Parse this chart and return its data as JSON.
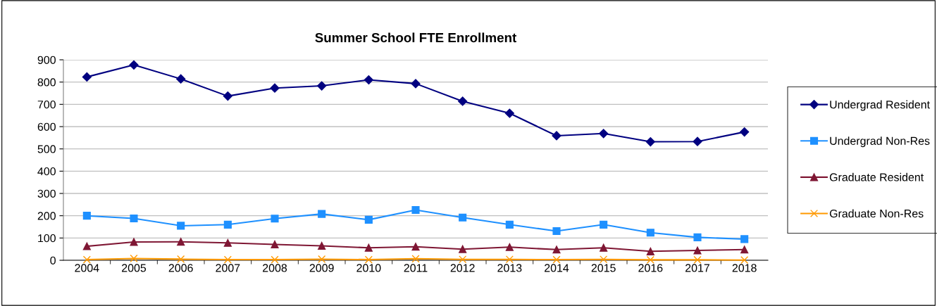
{
  "chart_data": {
    "type": "line",
    "title": "Summer School FTE Enrollment",
    "categories": [
      "2004",
      "2005",
      "2006",
      "2007",
      "2008",
      "2009",
      "2010",
      "2011",
      "2012",
      "2013",
      "2014",
      "2015",
      "2016",
      "2017",
      "2018"
    ],
    "series": [
      {
        "name": "Undergrad Resident",
        "color": "#000080",
        "marker": "diamond",
        "values": [
          823,
          877,
          814,
          737,
          773,
          783,
          810,
          793,
          714,
          660,
          559,
          569,
          532,
          533,
          576
        ]
      },
      {
        "name": "Undergrad Non-Res",
        "color": "#1e90ff",
        "marker": "square",
        "values": [
          200,
          188,
          155,
          160,
          187,
          208,
          182,
          226,
          192,
          160,
          131,
          160,
          124,
          103,
          95
        ]
      },
      {
        "name": "Graduate Resident",
        "color": "#7f1734",
        "marker": "triangle",
        "values": [
          63,
          82,
          83,
          78,
          71,
          65,
          56,
          61,
          50,
          59,
          48,
          56,
          40,
          44,
          48
        ]
      },
      {
        "name": "Graduate Non-Res",
        "color": "#ff9900",
        "marker": "cross",
        "values": [
          3,
          8,
          5,
          3,
          3,
          5,
          3,
          7,
          4,
          4,
          3,
          4,
          2,
          2,
          1
        ]
      }
    ],
    "ylim": [
      0,
      900
    ],
    "yticks": [
      0,
      100,
      200,
      300,
      400,
      500,
      600,
      700,
      800,
      900
    ],
    "grid": "y",
    "legend": "right",
    "line_style": "solid"
  }
}
